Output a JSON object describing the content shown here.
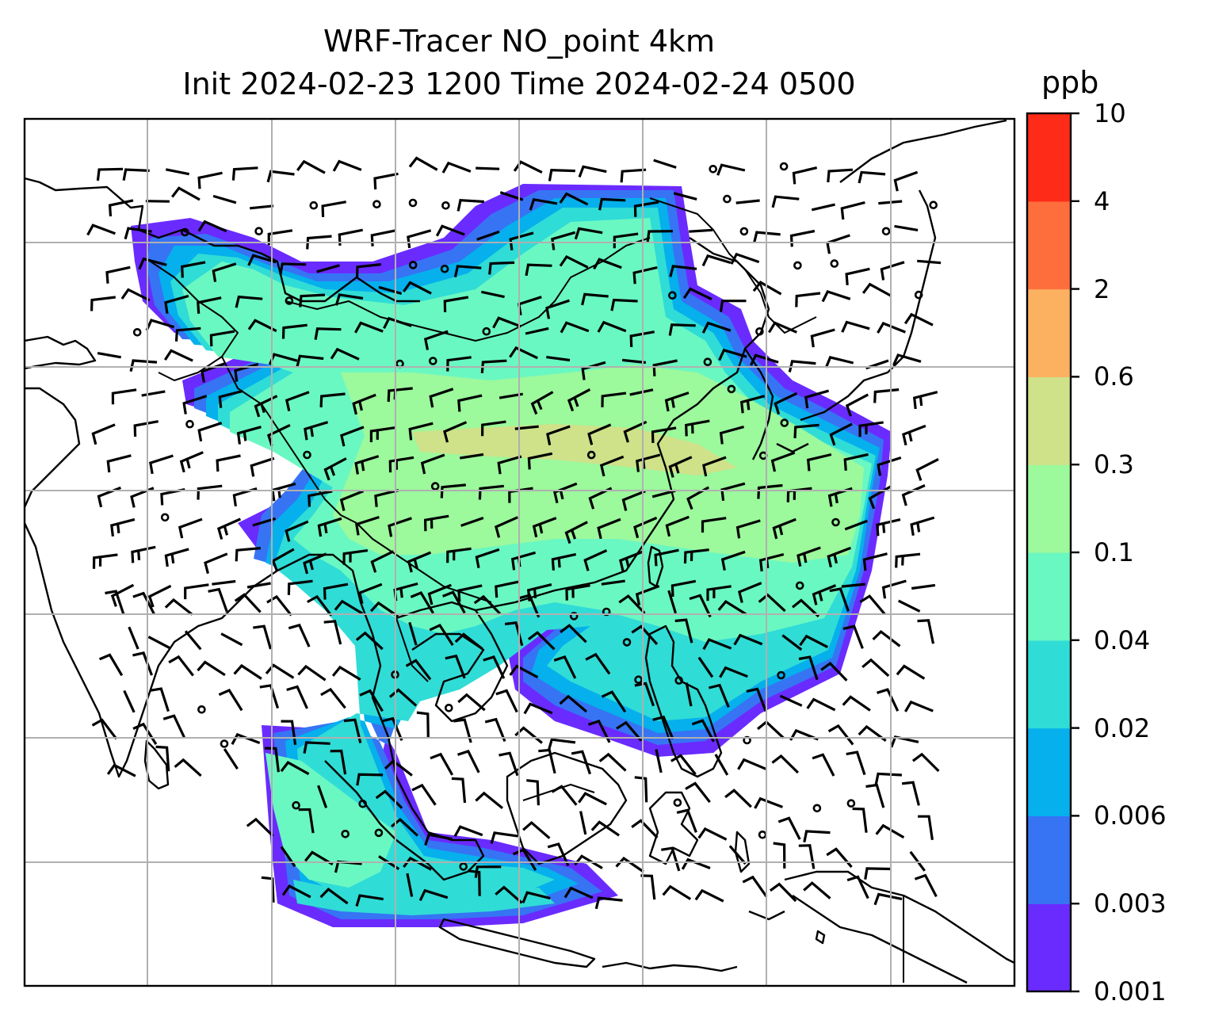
{
  "title": {
    "line1": "WRF-Tracer NO_point 4km",
    "line2": "Init 2024-02-23 1200 Time 2024-02-24 0500"
  },
  "colorbar": {
    "unit": "ppb",
    "ticks": [
      "10",
      "4",
      "2",
      "0.6",
      "0.3",
      "0.1",
      "0.04",
      "0.02",
      "0.006",
      "0.003",
      "0.001"
    ],
    "colors": [
      "#6a2bff",
      "#3674f4",
      "#05b0ec",
      "#30dcd6",
      "#6af8c2",
      "#9cf99c",
      "#cfe189",
      "#fcb161",
      "#fd6e3c",
      "#fe2b18"
    ]
  },
  "map": {
    "gridlines": true,
    "features": [
      "coastlines",
      "country-borders",
      "wind-barbs",
      "tracer-concentration"
    ]
  }
}
